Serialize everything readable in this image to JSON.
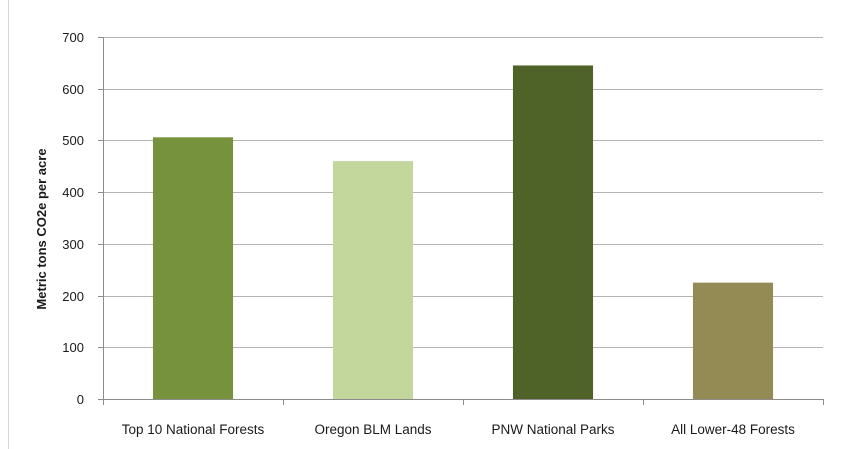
{
  "chart_data": {
    "type": "bar",
    "title": "",
    "xlabel": "",
    "ylabel": "Metric tons CO2e per acre",
    "categories": [
      "Top 10 National Forests",
      "Oregon BLM Lands",
      "PNW National Parks",
      "All Lower-48 Forests"
    ],
    "values": [
      506,
      460,
      645,
      225
    ],
    "bar_colors": [
      "#76923c",
      "#c3d69b",
      "#4f6228",
      "#948a54"
    ],
    "ylim": [
      0,
      700
    ],
    "yticks": [
      0,
      100,
      200,
      300,
      400,
      500,
      600,
      700
    ],
    "grid": true,
    "legend": "none",
    "colors": {
      "grid": "#b3b3b3",
      "axis": "#8c8c8c",
      "text": "#1a1a1a"
    }
  }
}
